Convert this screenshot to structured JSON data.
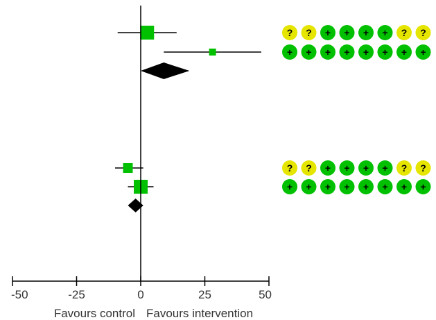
{
  "chart_data": {
    "type": "forest",
    "title": "",
    "xlim": [
      -50,
      50
    ],
    "x_ticks": [
      -50,
      -25,
      0,
      25,
      50
    ],
    "x_tick_labels": [
      "-50",
      "-25",
      "0",
      "25",
      "50"
    ],
    "xlabel_left": "Favours control",
    "xlabel_right": "Favours intervention",
    "groups": [
      {
        "studies": [
          {
            "estimate": 2.5,
            "ci": [
              -9,
              14
            ],
            "weight": "large"
          },
          {
            "estimate": 28,
            "ci": [
              9,
              47
            ],
            "weight": "small"
          }
        ],
        "pooled": {
          "estimate": 9,
          "ci": [
            0,
            19
          ]
        }
      },
      {
        "studies": [
          {
            "estimate": -5,
            "ci": [
              -10,
              1
            ],
            "weight": "medium"
          },
          {
            "estimate": 0,
            "ci": [
              -5,
              5
            ],
            "weight": "large"
          }
        ],
        "pooled": {
          "estimate": -2,
          "ci": [
            -5,
            1
          ]
        }
      }
    ],
    "risk_of_bias": [
      {
        "row": 1,
        "symbols": [
          "?",
          "?",
          "+",
          "+",
          "+",
          "+",
          "?",
          "?"
        ]
      },
      {
        "row": 2,
        "symbols": [
          "+",
          "+",
          "+",
          "+",
          "+",
          "+",
          "+",
          "+"
        ]
      },
      {
        "row": 3,
        "symbols": [
          "?",
          "?",
          "+",
          "+",
          "+",
          "+",
          "?",
          "?"
        ]
      },
      {
        "row": 4,
        "symbols": [
          "+",
          "+",
          "+",
          "+",
          "+",
          "+",
          "+",
          "+"
        ]
      }
    ]
  },
  "colors": {
    "study_marker": "#00c000",
    "pooled_diamond": "#000000",
    "low_risk": "#00c000",
    "unclear_risk": "#e5e500",
    "axis": "#000000"
  }
}
